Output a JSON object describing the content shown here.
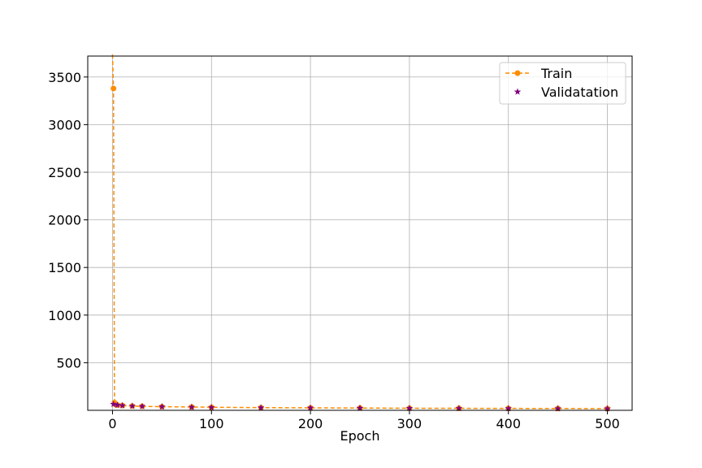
{
  "chart_data": {
    "type": "line",
    "title": "",
    "xlabel": "Epoch",
    "ylabel": "",
    "xlim": [
      -25,
      525
    ],
    "ylim": [
      0,
      3720
    ],
    "xticks": [
      0,
      100,
      200,
      300,
      400,
      500
    ],
    "yticks": [
      500,
      1000,
      1500,
      2000,
      2500,
      3000,
      3500
    ],
    "grid": true,
    "legend_position": "top-right",
    "series": [
      {
        "name": "Train",
        "style": "dashed line with circle markers",
        "color": "#ff8c00",
        "x": [
          0,
          1,
          2,
          3,
          5,
          10,
          20,
          30,
          50,
          80,
          100,
          150,
          200,
          250,
          300,
          350,
          400,
          450,
          500
        ],
        "y": [
          3800,
          3380,
          80,
          60,
          55,
          50,
          45,
          42,
          38,
          35,
          32,
          28,
          26,
          24,
          22,
          21,
          20,
          19,
          18
        ]
      },
      {
        "name": "Validatation",
        "style": "star markers",
        "color": "#800080",
        "x": [
          1,
          5,
          10,
          20,
          30,
          50,
          80,
          100,
          150,
          200,
          250,
          300,
          350,
          400,
          450,
          500
        ],
        "y": [
          65,
          55,
          50,
          45,
          42,
          38,
          33,
          30,
          27,
          25,
          23,
          21,
          20,
          19,
          18,
          17
        ]
      }
    ]
  }
}
